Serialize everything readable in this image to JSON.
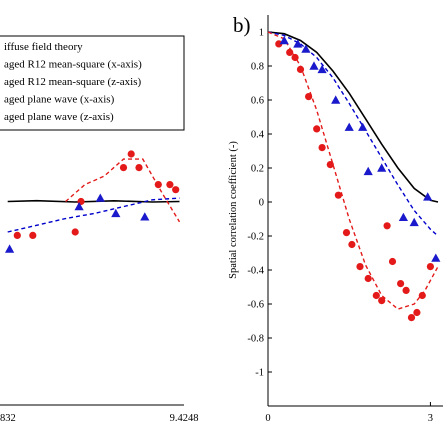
{
  "chart_data": [
    {
      "panel": "a",
      "type": "line",
      "title": "",
      "xlabel": "",
      "ylabel": "",
      "xlim": [
        0,
        9.4248
      ],
      "ylim": [
        -1.2,
        1.1
      ],
      "tick_labels_x": [
        "832",
        "9.4248"
      ],
      "legend": [
        "iffuse field theory",
        "aged R12 mean-square (x-axis)",
        "aged R12 mean-square (z-axis)",
        "aged plane wave (x-axis)",
        "aged plane wave (z-axis)"
      ],
      "series": [
        {
          "style": "line",
          "color": "#000000",
          "x": [
            0.5,
            2.0,
            4.0,
            6.0,
            8.0,
            9.4
          ],
          "y": [
            0.0,
            0.005,
            -0.003,
            0.004,
            -0.003,
            0.0
          ]
        },
        {
          "style": "dashed",
          "color": "#0000cc",
          "x": [
            0.5,
            2.0,
            3.5,
            5.0,
            6.5,
            8.0,
            9.4
          ],
          "y": [
            -0.18,
            -0.14,
            -0.1,
            -0.07,
            -0.03,
            0.01,
            0.02
          ]
        },
        {
          "style": "dashed",
          "color": "#e41a1a",
          "x": [
            3.5,
            4.5,
            5.5,
            6.5,
            7.5,
            8.5,
            9.4
          ],
          "y": [
            0.0,
            0.1,
            0.15,
            0.25,
            0.25,
            0.05,
            -0.12
          ]
        },
        {
          "style": "points",
          "marker": "circle",
          "color": "#e41a1a",
          "x": [
            1.0,
            1.8,
            4.0,
            4.3,
            6.5,
            6.9,
            7.3,
            8.3,
            8.9,
            9.2
          ],
          "y": [
            -0.2,
            -0.2,
            -0.18,
            0.0,
            0.2,
            0.28,
            0.2,
            0.1,
            0.1,
            0.07
          ]
        },
        {
          "style": "points",
          "marker": "triangle",
          "color": "#1a1acc",
          "x": [
            0.6,
            4.2,
            5.3,
            6.1,
            7.6
          ],
          "y": [
            -0.28,
            -0.03,
            0.02,
            -0.07,
            -0.09
          ]
        }
      ]
    },
    {
      "panel": "b",
      "type": "line",
      "title": "",
      "xlabel": "",
      "ylabel": "Spatial correlation coefficient (-)",
      "xlim": [
        0,
        3.14
      ],
      "ylim": [
        -1.2,
        1.1
      ],
      "yticks": [
        1,
        0.8,
        0.6,
        0.4,
        0.2,
        0,
        -0.2,
        -0.4,
        -0.6,
        -0.8,
        -1
      ],
      "ytick_labels": [
        "1",
        "0.8",
        "0.6",
        "0.4",
        "0.2",
        "0",
        "-0.2",
        "-0.4",
        "-0.6",
        "-0.8",
        "-1"
      ],
      "tick_labels_x": [
        "0",
        "3"
      ],
      "series": [
        {
          "style": "line",
          "color": "#000000",
          "x": [
            0,
            0.3,
            0.6,
            0.9,
            1.2,
            1.5,
            1.8,
            2.1,
            2.4,
            2.7,
            3.0,
            3.14
          ],
          "y": [
            1.0,
            0.99,
            0.95,
            0.88,
            0.77,
            0.64,
            0.49,
            0.34,
            0.2,
            0.08,
            0.01,
            0.0
          ]
        },
        {
          "style": "dashed",
          "color": "#0000cc",
          "x": [
            0,
            0.3,
            0.6,
            0.9,
            1.2,
            1.5,
            1.8,
            2.1,
            2.4,
            2.7,
            3.0,
            3.14
          ],
          "y": [
            1.0,
            0.98,
            0.93,
            0.85,
            0.73,
            0.58,
            0.42,
            0.26,
            0.1,
            -0.05,
            -0.16,
            -0.2
          ]
        },
        {
          "style": "dashed",
          "color": "#e41a1a",
          "x": [
            0,
            0.3,
            0.6,
            0.9,
            1.2,
            1.5,
            1.8,
            2.1,
            2.4,
            2.7,
            2.9,
            3.14
          ],
          "y": [
            1.0,
            0.96,
            0.8,
            0.54,
            0.22,
            -0.1,
            -0.37,
            -0.55,
            -0.63,
            -0.6,
            -0.52,
            -0.38
          ]
        },
        {
          "style": "points",
          "marker": "circle",
          "color": "#e41a1a",
          "x": [
            0.2,
            0.4,
            0.5,
            0.6,
            0.75,
            0.9,
            1.0,
            1.15,
            1.3,
            1.45,
            1.55,
            1.7,
            1.85,
            2.0,
            2.1,
            2.2,
            2.3,
            2.45,
            2.55,
            2.65,
            2.75,
            2.85,
            3.0
          ],
          "y": [
            0.93,
            0.88,
            0.85,
            0.78,
            0.62,
            0.43,
            0.32,
            0.22,
            0.04,
            -0.18,
            -0.25,
            -0.38,
            -0.45,
            -0.55,
            -0.58,
            -0.14,
            -0.35,
            -0.48,
            -0.52,
            -0.68,
            -0.65,
            -0.55,
            -0.38
          ]
        },
        {
          "style": "points",
          "marker": "triangle",
          "color": "#1a1acc",
          "x": [
            0.3,
            0.55,
            0.7,
            0.85,
            1.0,
            1.25,
            1.5,
            1.75,
            1.85,
            2.1,
            2.5,
            2.7,
            2.95,
            3.1
          ],
          "y": [
            0.95,
            0.93,
            0.9,
            0.8,
            0.78,
            0.6,
            0.44,
            0.44,
            0.18,
            0.2,
            -0.09,
            -0.12,
            0.03,
            -0.33
          ]
        }
      ]
    }
  ],
  "panel_b_label": "b)"
}
